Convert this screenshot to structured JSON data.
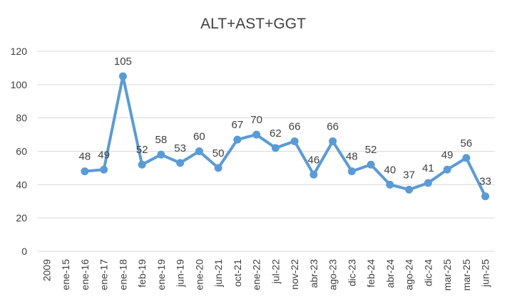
{
  "chart_data": {
    "type": "line",
    "title": "ALT+AST+GGT",
    "xlabel": "",
    "ylabel": "",
    "categories": [
      "2009",
      "ene-15",
      "ene-16",
      "ene-17",
      "ene-18",
      "feb-19",
      "ene-19",
      "jun-19",
      "ene-20",
      "jun-21",
      "oct-21",
      "ene-22",
      "jul-22",
      "nov-22",
      "abr-23",
      "ago-23",
      "dic-23",
      "feb-24",
      "abr-24",
      "ago-24",
      "dic-24",
      "mar-25",
      "mar-25",
      "jun-25"
    ],
    "series": [
      {
        "values": [
          null,
          null,
          48,
          49,
          105,
          52,
          58,
          53,
          60,
          50,
          67,
          70,
          62,
          66,
          46,
          66,
          48,
          52,
          40,
          37,
          41,
          49,
          56,
          33
        ],
        "data_labels": [
          "",
          "",
          "48",
          "49",
          "105",
          "52",
          "58",
          "53",
          "60",
          "50",
          "67",
          "70",
          "62",
          "66",
          "46",
          "66",
          "48",
          "52",
          "40",
          "37",
          "41",
          "49",
          "56",
          "33"
        ]
      }
    ],
    "ylim": [
      0,
      120
    ],
    "yticks": [
      "0",
      "20",
      "40",
      "60",
      "80",
      "100",
      "120"
    ],
    "grid": true,
    "legend": "none",
    "colors": {
      "line": "#5B9BD5",
      "grid": "#D9D9D9",
      "text": "#404040"
    }
  }
}
